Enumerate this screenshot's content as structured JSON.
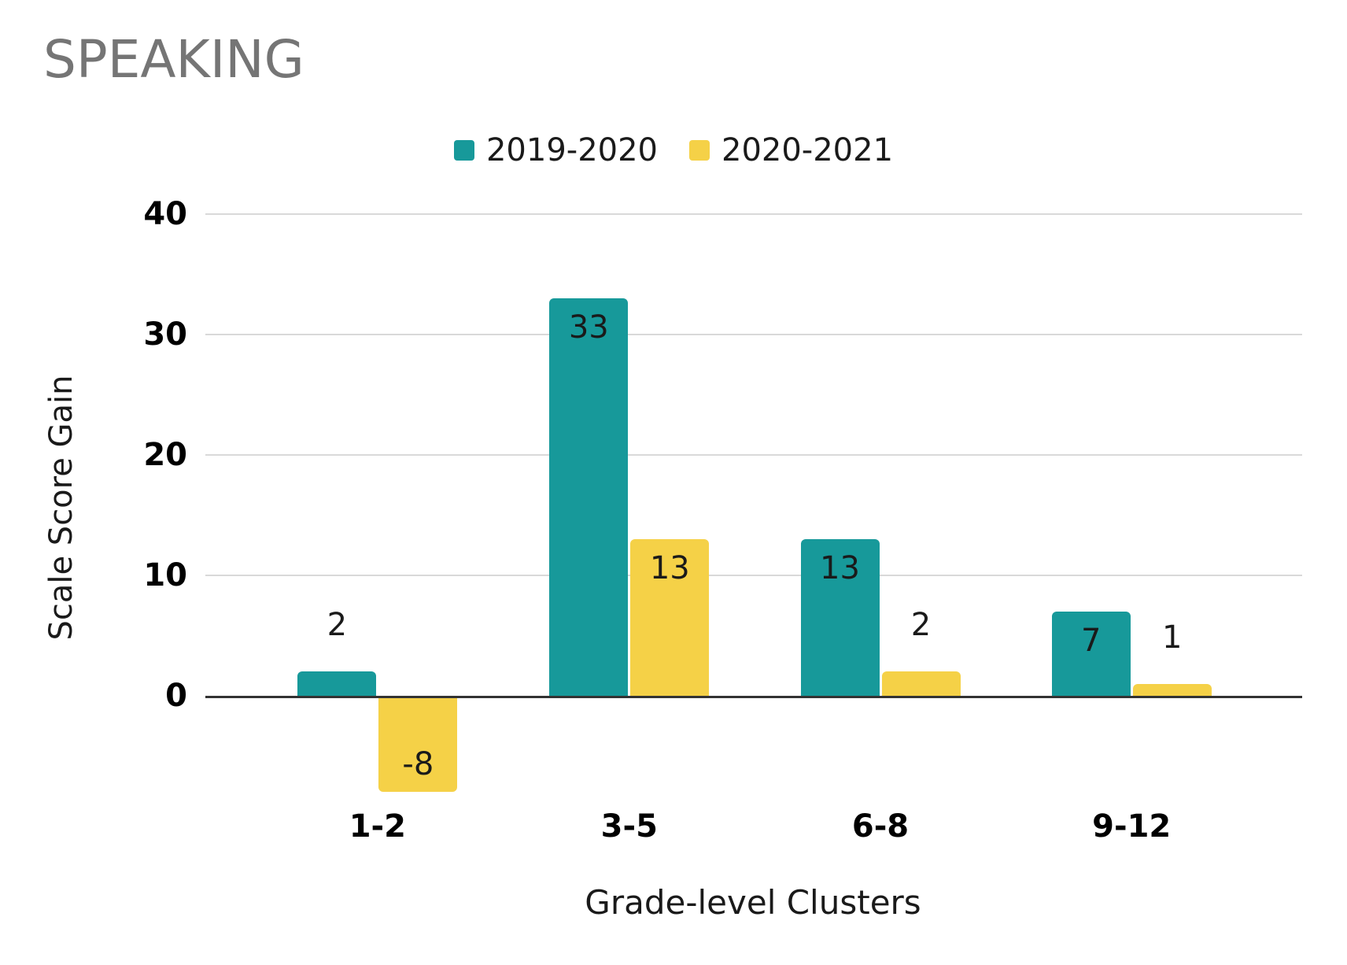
{
  "chart_data": {
    "type": "bar",
    "title": "SPEAKING",
    "xlabel": "Grade-level Clusters",
    "ylabel": "Scale Score Gain",
    "categories": [
      "1-2",
      "3-5",
      "6-8",
      "9-12"
    ],
    "series": [
      {
        "name": "2019-2020",
        "color": "#17999a",
        "values": [
          2,
          33,
          13,
          7
        ]
      },
      {
        "name": "2020-2021",
        "color": "#f5d147",
        "values": [
          -8,
          13,
          2,
          1
        ]
      }
    ],
    "yticks": [
      0,
      10,
      20,
      30,
      40
    ],
    "ylim": [
      -8,
      40
    ],
    "grid": true,
    "legend_position": "top",
    "bar_labels": true
  },
  "styles": {
    "title_color": "#757575",
    "text_color": "#1a1a1a",
    "gridline_color": "#d9d9d9",
    "axis_line_color": "#333333",
    "background": "#ffffff"
  }
}
